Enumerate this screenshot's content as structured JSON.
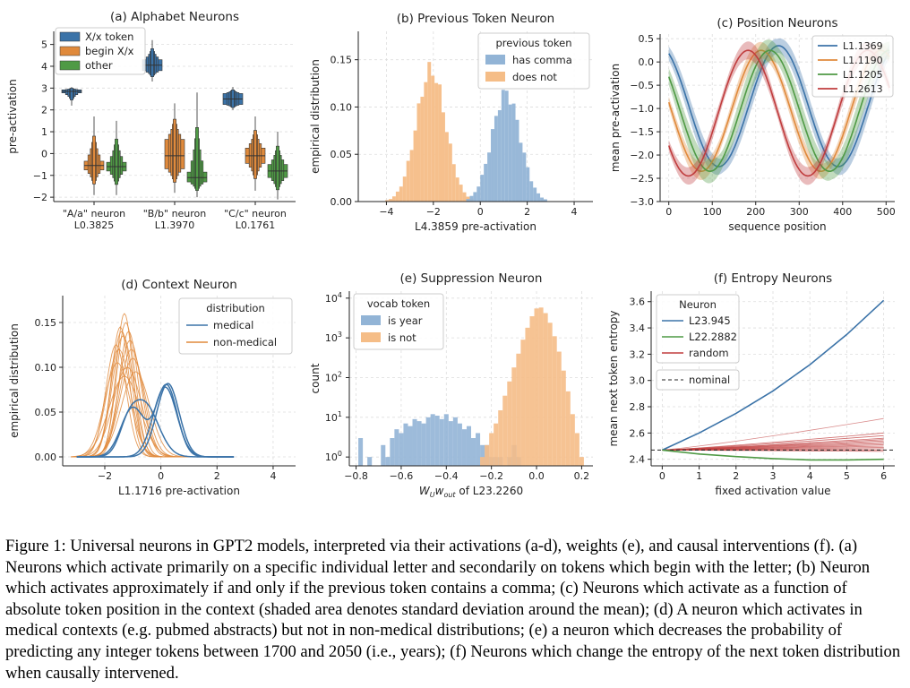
{
  "chart_data": [
    {
      "id": "a",
      "type": "boxen",
      "title": "(a) Alphabet Neurons",
      "ylabel": "pre-activation",
      "ylim": [
        -2.2,
        5.6
      ],
      "yticks": [
        -2,
        -1,
        0,
        1,
        2,
        3,
        4,
        5
      ],
      "categories": [
        [
          "\"A/a\" neuron",
          "L0.3825"
        ],
        [
          "\"B/b\" neuron",
          "L1.3970"
        ],
        [
          "\"C/c\" neuron",
          "L0.1761"
        ]
      ],
      "legend": {
        "placement": "top-left",
        "entries": [
          {
            "label": "X/x token",
            "color": "#3b73a8"
          },
          {
            "label": "begin X/x",
            "color": "#e08a3c"
          },
          {
            "label": "other",
            "color": "#4f9a45"
          }
        ]
      },
      "series": [
        {
          "name": "X/x token",
          "color": "#3b73a8",
          "values": [
            {
              "median": 2.85,
              "q1": 2.78,
              "q3": 2.92,
              "min": 2.2,
              "max": 3.05
            },
            {
              "median": 4.05,
              "q1": 3.8,
              "q3": 4.3,
              "min": 3.3,
              "max": 5.2
            },
            {
              "median": 2.5,
              "q1": 2.25,
              "q3": 2.75,
              "min": 2.0,
              "max": 3.05
            }
          ]
        },
        {
          "name": "begin X/x",
          "color": "#e08a3c",
          "values": [
            {
              "median": -0.55,
              "q1": -0.75,
              "q3": -0.35,
              "min": -1.9,
              "max": 1.7
            },
            {
              "median": -0.1,
              "q1": -0.7,
              "q3": 0.65,
              "min": -1.8,
              "max": 2.3
            },
            {
              "median": -0.1,
              "q1": -0.45,
              "q3": 0.25,
              "min": -1.7,
              "max": 1.7
            }
          ]
        },
        {
          "name": "other",
          "color": "#4f9a45",
          "values": [
            {
              "median": -0.6,
              "q1": -0.8,
              "q3": -0.4,
              "min": -1.9,
              "max": 1.5
            },
            {
              "median": -1.1,
              "q1": -1.3,
              "q3": -0.85,
              "min": -2.0,
              "max": 2.8
            },
            {
              "median": -0.8,
              "q1": -1.1,
              "q3": -0.5,
              "min": -2.1,
              "max": 1.0
            }
          ]
        }
      ]
    },
    {
      "id": "b",
      "type": "histogram",
      "title": "(b) Previous Token Neuron",
      "xlabel": "L4.3859 pre-activation",
      "ylabel": "empirical distribution",
      "xlim": [
        -5.2,
        4.8
      ],
      "ylim": [
        0,
        0.18
      ],
      "xticks": [
        -4,
        -2,
        0,
        2,
        4
      ],
      "xtick_labels": [
        "−4",
        "−2",
        "0",
        "2",
        "4"
      ],
      "yticks": [
        0,
        0.05,
        0.1,
        0.15
      ],
      "ytick_labels": [
        "0.00",
        "0.05",
        "0.10",
        "0.15"
      ],
      "legend": {
        "placement": "top-right",
        "title": "previous token",
        "entries": [
          {
            "label": "has comma",
            "color": "#92b4d6"
          },
          {
            "label": "does not",
            "color": "#f5bd87"
          }
        ]
      },
      "series": [
        {
          "name": "does not",
          "color": "#f5bd87",
          "mean": -2.1,
          "sd": 0.62,
          "peak": 0.139
        },
        {
          "name": "has comma",
          "color": "#92b4d6",
          "mean": 1.1,
          "sd": 0.6,
          "peak": 0.115
        }
      ]
    },
    {
      "id": "c",
      "type": "line",
      "title": "(c) Position Neurons",
      "xlabel": "sequence position",
      "ylabel": "mean pre-activation",
      "xlim": [
        -20,
        520
      ],
      "ylim": [
        -3.0,
        0.6
      ],
      "xticks": [
        0,
        100,
        200,
        300,
        400,
        500
      ],
      "yticks": [
        -3,
        -2.5,
        -2,
        -1.5,
        -1,
        -0.5,
        0,
        0.5
      ],
      "ytick_labels": [
        "−3.0",
        "−2.5",
        "−2.0",
        "−1.5",
        "−1.0",
        "−0.5",
        "0.0",
        "0.5"
      ],
      "legend": {
        "placement": "top-right"
      },
      "series": [
        {
          "name": "L1.1369",
          "color": "#3b73a8",
          "period": 275,
          "phase": 115,
          "mean": -0.95,
          "amplitude": 1.3,
          "band": 0.15
        },
        {
          "name": "L1.1190",
          "color": "#e08a3c",
          "period": 275,
          "phase": 75,
          "mean": -1.05,
          "amplitude": 1.3,
          "band": 0.12
        },
        {
          "name": "L1.1205",
          "color": "#4f9a45",
          "period": 275,
          "phase": 95,
          "mean": -1.05,
          "amplitude": 1.3,
          "band": 0.18
        },
        {
          "name": "L1.2613",
          "color": "#c03d3e",
          "period": 275,
          "phase": 45,
          "mean": -1.1,
          "amplitude": 1.35,
          "band": 0.12
        }
      ]
    },
    {
      "id": "d",
      "type": "density",
      "title": "(d) Context Neuron",
      "xlabel": "L1.1716 pre-activation",
      "ylabel": "empirical distribution",
      "xlim": [
        -3.5,
        4.8
      ],
      "ylim": [
        -0.01,
        0.18
      ],
      "xticks": [
        -2,
        0,
        2,
        4
      ],
      "xtick_labels": [
        "−2",
        "0",
        "2",
        "4"
      ],
      "yticks": [
        0,
        0.05,
        0.1,
        0.15
      ],
      "ytick_labels": [
        "0.00",
        "0.05",
        "0.10",
        "0.15"
      ],
      "legend": {
        "placement": "top-right",
        "title": "distribution",
        "entries": [
          {
            "label": "medical",
            "color": "#3b73a8"
          },
          {
            "label": "non-medical",
            "color": "#e08a3c"
          }
        ]
      },
      "medical_curves": [
        {
          "components": [
            [
              0.08,
              0.2,
              0.38
            ],
            [
              0.055,
              -1.0,
              0.42
            ]
          ]
        },
        {
          "components": [
            [
              0.082,
              0.25,
              0.4
            ]
          ]
        },
        {
          "components": [
            [
              0.078,
              0.15,
              0.42
            ]
          ]
        },
        {
          "components": [
            [
              0.06,
              -0.6,
              0.5
            ],
            [
              0.02,
              -1.2,
              0.3
            ]
          ]
        }
      ],
      "nonmedical_curves": [
        [
          -1.25,
          0.33,
          0.15
        ],
        [
          -1.4,
          0.36,
          0.14
        ],
        [
          -1.1,
          0.4,
          0.13
        ],
        [
          -1.3,
          0.3,
          0.16
        ],
        [
          -1.5,
          0.42,
          0.12
        ],
        [
          -1.0,
          0.45,
          0.11
        ],
        [
          -1.35,
          0.38,
          0.135
        ],
        [
          -1.2,
          0.5,
          0.1
        ],
        [
          -1.6,
          0.36,
          0.125
        ],
        [
          -0.9,
          0.5,
          0.095
        ],
        [
          -1.45,
          0.32,
          0.145
        ],
        [
          -1.15,
          0.34,
          0.14
        ],
        [
          -1.55,
          0.45,
          0.105
        ],
        [
          -1.05,
          0.42,
          0.12
        ],
        [
          -1.3,
          0.55,
          0.09
        ]
      ]
    },
    {
      "id": "e",
      "type": "histogram",
      "title": "(e) Suppression Neuron",
      "xlabel": "W_U w_out of L23.2260",
      "ylabel": "count",
      "xscale": "linear",
      "yscale": "log",
      "xlim": [
        -0.83,
        0.25
      ],
      "ylim": [
        0.6,
        15000
      ],
      "xticks": [
        -0.8,
        -0.6,
        -0.4,
        -0.2,
        0.0,
        0.2
      ],
      "xtick_labels": [
        "−0.8",
        "−0.6",
        "−0.4",
        "−0.2",
        "0.0",
        "0.2"
      ],
      "legend": {
        "placement": "top-left",
        "title": "vocab token",
        "entries": [
          {
            "label": "is year",
            "color": "#92b4d6"
          },
          {
            "label": "is not",
            "color": "#f5bd87"
          }
        ]
      },
      "series": [
        {
          "name": "is year",
          "color": "#92b4d6",
          "bins": [
            [
              -0.78,
              3
            ],
            [
              -0.76,
              0
            ],
            [
              -0.74,
              1
            ],
            [
              -0.72,
              0
            ],
            [
              -0.7,
              0
            ],
            [
              -0.68,
              2
            ],
            [
              -0.66,
              1
            ],
            [
              -0.64,
              3
            ],
            [
              -0.62,
              5
            ],
            [
              -0.6,
              4
            ],
            [
              -0.58,
              7
            ],
            [
              -0.56,
              6
            ],
            [
              -0.54,
              9
            ],
            [
              -0.52,
              8
            ],
            [
              -0.5,
              7
            ],
            [
              -0.48,
              10
            ],
            [
              -0.46,
              12
            ],
            [
              -0.44,
              11
            ],
            [
              -0.42,
              9
            ],
            [
              -0.4,
              12
            ],
            [
              -0.38,
              8
            ],
            [
              -0.36,
              10
            ],
            [
              -0.34,
              7
            ],
            [
              -0.32,
              5
            ],
            [
              -0.3,
              6
            ],
            [
              -0.28,
              3
            ],
            [
              -0.26,
              4
            ],
            [
              -0.24,
              2
            ],
            [
              -0.22,
              2
            ],
            [
              -0.2,
              1
            ],
            [
              -0.18,
              1
            ],
            [
              -0.16,
              1
            ],
            [
              -0.14,
              0
            ],
            [
              -0.12,
              1
            ],
            [
              -0.1,
              2
            ],
            [
              -0.08,
              1
            ]
          ]
        },
        {
          "name": "is not",
          "color": "#f5bd87",
          "bins": [
            [
              -0.24,
              1
            ],
            [
              -0.22,
              2
            ],
            [
              -0.2,
              4
            ],
            [
              -0.18,
              7
            ],
            [
              -0.16,
              15
            ],
            [
              -0.14,
              35
            ],
            [
              -0.12,
              80
            ],
            [
              -0.1,
              180
            ],
            [
              -0.08,
              400
            ],
            [
              -0.06,
              900
            ],
            [
              -0.04,
              1800
            ],
            [
              -0.02,
              3500
            ],
            [
              0.0,
              5500
            ],
            [
              0.02,
              5800
            ],
            [
              0.04,
              4200
            ],
            [
              0.06,
              2400
            ],
            [
              0.08,
              1100
            ],
            [
              0.1,
              450
            ],
            [
              0.12,
              150
            ],
            [
              0.14,
              45
            ],
            [
              0.16,
              12
            ],
            [
              0.18,
              4
            ],
            [
              0.2,
              1
            ]
          ]
        }
      ]
    },
    {
      "id": "f",
      "type": "line",
      "title": "(f) Entropy Neurons",
      "xlabel": "fixed activation value",
      "ylabel": "mean next token entropy",
      "xlim": [
        -0.3,
        6.3
      ],
      "ylim": [
        2.35,
        3.68
      ],
      "xticks": [
        0,
        1,
        2,
        3,
        4,
        5,
        6
      ],
      "yticks": [
        2.4,
        2.6,
        2.8,
        3.0,
        3.2,
        3.4,
        3.6
      ],
      "ytick_labels": [
        "2.4",
        "2.6",
        "2.8",
        "3.0",
        "3.2",
        "3.4",
        "3.6"
      ],
      "legend": {
        "placement": "top-left",
        "title": "Neuron",
        "entries": [
          {
            "label": "L23.945",
            "color": "#3b73a8"
          },
          {
            "label": "L22.2882",
            "color": "#4f9a45"
          },
          {
            "label": "random",
            "color": "#c03d3e"
          }
        ],
        "extra": {
          "label": "nominal",
          "style": "dashed",
          "color": "#222222"
        }
      },
      "nominal": 2.47,
      "series": [
        {
          "name": "L23.945",
          "color": "#3b73a8",
          "x": [
            0,
            1,
            2,
            3,
            4,
            5,
            6
          ],
          "values": [
            2.47,
            2.6,
            2.75,
            2.92,
            3.12,
            3.35,
            3.61
          ]
        },
        {
          "name": "L22.2882",
          "color": "#4f9a45",
          "x": [
            0,
            1,
            2,
            3,
            4,
            5,
            6
          ],
          "values": [
            2.47,
            2.44,
            2.42,
            2.405,
            2.395,
            2.395,
            2.4
          ]
        },
        {
          "name": "random",
          "color": "#c03d3e",
          "x": [
            0,
            6
          ],
          "endpoints": [
            2.71,
            2.6,
            2.58,
            2.56,
            2.55,
            2.54,
            2.53,
            2.52,
            2.51,
            2.5,
            2.49,
            2.48,
            2.47,
            2.46
          ]
        }
      ]
    }
  ],
  "caption": {
    "text": "Figure 1: Universal neurons in GPT2 models, interpreted via their activations (a-d), weights (e), and causal interventions (f). (a) Neurons which activate primarily on a specific individual letter and secondarily on tokens which begin with the letter; (b) Neuron which activates approximately if and only if the previous token contains a comma; (c) Neurons which activate as a function of absolute token position in the context (shaded area denotes standard deviation around the mean); (d) A neuron which activates in medical contexts (e.g. pubmed abstracts) but not in non-medical distributions; (e) a neuron which decreases the probability of predicting any integer tokens between 1700 and 2050 (i.e., years); (f) Neurons which change the entropy of the next token distribution when causally intervened."
  }
}
